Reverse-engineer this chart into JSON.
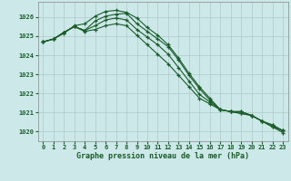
{
  "title": "Graphe pression niveau de la mer (hPa)",
  "background_color": "#cce8e8",
  "grid_color": "#b0c8c8",
  "line_color": "#1a5c2a",
  "xlim": [
    -0.5,
    23.5
  ],
  "ylim": [
    1019.5,
    1026.8
  ],
  "yticks": [
    1020,
    1021,
    1022,
    1023,
    1024,
    1025,
    1026
  ],
  "xticks": [
    0,
    1,
    2,
    3,
    4,
    5,
    6,
    7,
    8,
    9,
    10,
    11,
    12,
    13,
    14,
    15,
    16,
    17,
    18,
    19,
    20,
    21,
    22,
    23
  ],
  "series": [
    [
      1024.7,
      1024.85,
      1025.15,
      1025.55,
      1025.65,
      1026.05,
      1026.3,
      1026.35,
      1026.25,
      1025.95,
      1025.45,
      1025.05,
      1024.55,
      1023.85,
      1023.05,
      1022.35,
      1021.75,
      1021.15,
      1021.05,
      1021.05,
      1020.85,
      1020.55,
      1020.25,
      1019.95
    ],
    [
      1024.7,
      1024.85,
      1025.2,
      1025.5,
      1025.3,
      1025.8,
      1026.05,
      1026.15,
      1026.2,
      1025.65,
      1025.25,
      1024.85,
      1024.45,
      1023.75,
      1022.95,
      1022.25,
      1021.65,
      1021.15,
      1021.05,
      1021.05,
      1020.85,
      1020.55,
      1020.25,
      1020.05
    ],
    [
      1024.7,
      1024.85,
      1025.2,
      1025.5,
      1025.3,
      1025.55,
      1025.85,
      1025.95,
      1025.85,
      1025.35,
      1024.95,
      1024.55,
      1024.05,
      1023.35,
      1022.65,
      1021.95,
      1021.55,
      1021.15,
      1021.05,
      1020.95,
      1020.85,
      1020.55,
      1020.35,
      1020.05
    ],
    [
      1024.7,
      1024.85,
      1025.2,
      1025.5,
      1025.25,
      1025.35,
      1025.55,
      1025.65,
      1025.55,
      1025.05,
      1024.55,
      1024.05,
      1023.55,
      1022.95,
      1022.35,
      1021.75,
      1021.45,
      1021.15,
      1021.05,
      1020.95,
      1020.85,
      1020.55,
      1020.35,
      1020.05
    ]
  ]
}
